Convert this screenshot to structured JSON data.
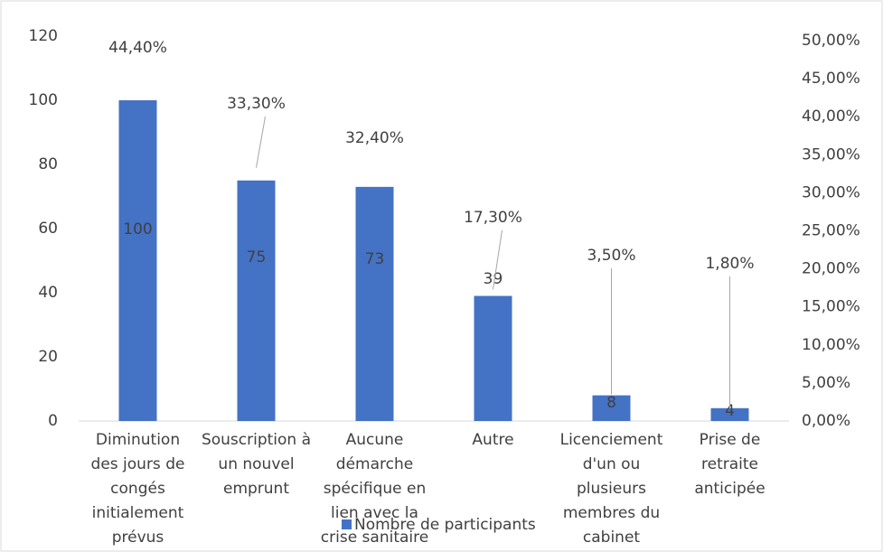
{
  "chart_data": {
    "type": "bar",
    "categories": [
      "Diminution des jours de congés initialement prévus",
      "Souscription à un nouvel emprunt",
      "Aucune démarche spécifique en lien avec la crise sanitaire",
      "Autre",
      "Licenciement d'un ou plusieurs membres du cabinet",
      "Prise de retraite anticipée"
    ],
    "series": [
      {
        "name": "Nombre de participants",
        "color": "#4472c4",
        "values": [
          100,
          75,
          73,
          39,
          8,
          4
        ]
      },
      {
        "axis": "y2",
        "values": [
          44.4,
          33.3,
          32.4,
          17.3,
          3.5,
          1.8
        ],
        "value_labels": [
          "44,40%",
          "33,30%",
          "32,40%",
          "17,30%",
          "3,50%",
          "1,80%"
        ]
      }
    ],
    "ylim": [
      0,
      120
    ],
    "yticks": [
      0,
      20,
      40,
      60,
      80,
      100,
      120
    ],
    "y2lim": [
      0,
      50
    ],
    "y2ticks": [
      {
        "value": 0,
        "label": "0,00%"
      },
      {
        "value": 5,
        "label": "5,00%"
      },
      {
        "value": 10,
        "label": "10,00%"
      },
      {
        "value": 15,
        "label": "15,00%"
      },
      {
        "value": 20,
        "label": "20,00%"
      },
      {
        "value": 25,
        "label": "25,00%"
      },
      {
        "value": 30,
        "label": "30,00%"
      },
      {
        "value": 35,
        "label": "35,00%"
      },
      {
        "value": 40,
        "label": "40,00%"
      },
      {
        "value": 45,
        "label": "45,00%"
      },
      {
        "value": 50,
        "label": "50,00%"
      }
    ],
    "legend": "bottom"
  }
}
